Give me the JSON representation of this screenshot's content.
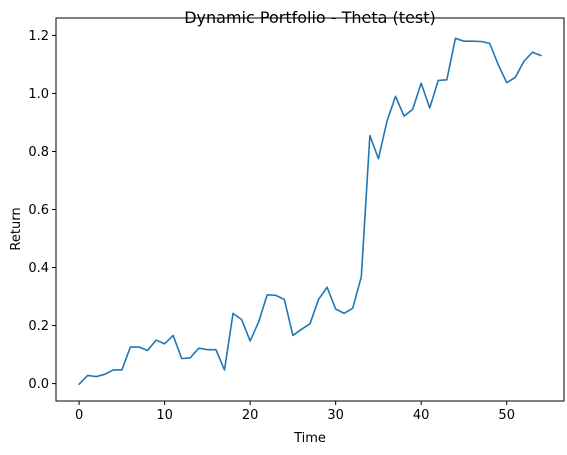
{
  "chart_data": {
    "type": "line",
    "title": "Dynamic Portfolio - Theta (test)",
    "xlabel": "Time",
    "ylabel": "Return",
    "xlim": [
      -2.7,
      56.7
    ],
    "ylim": [
      -0.06,
      1.26
    ],
    "x_ticks": [
      "0",
      "10",
      "20",
      "30",
      "40",
      "50"
    ],
    "y_ticks": [
      "0.0",
      "0.2",
      "0.4",
      "0.6",
      "0.8",
      "1.0",
      "1.2"
    ],
    "grid": false,
    "legend": "none",
    "series": [
      {
        "color": "#1f77b4",
        "x": [
          0,
          1,
          2,
          3,
          4,
          5,
          6,
          7,
          8,
          9,
          10,
          11,
          12,
          13,
          14,
          15,
          16,
          17,
          18,
          19,
          20,
          21,
          22,
          23,
          24,
          25,
          26,
          27,
          28,
          29,
          30,
          31,
          32,
          33,
          34,
          35,
          36,
          37,
          38,
          39,
          40,
          41,
          42,
          43,
          44,
          45,
          46,
          47,
          48,
          49,
          50,
          51,
          52,
          53,
          54
        ],
        "values": [
          -0.002,
          0.028,
          0.024,
          0.032,
          0.047,
          0.047,
          0.126,
          0.126,
          0.114,
          0.15,
          0.137,
          0.166,
          0.086,
          0.089,
          0.122,
          0.117,
          0.117,
          0.047,
          0.242,
          0.221,
          0.147,
          0.213,
          0.306,
          0.304,
          0.29,
          0.166,
          0.187,
          0.206,
          0.29,
          0.332,
          0.257,
          0.242,
          0.26,
          0.368,
          0.855,
          0.775,
          0.904,
          0.99,
          0.922,
          0.945,
          1.035,
          0.95,
          1.045,
          1.047,
          1.19,
          1.18,
          1.18,
          1.179,
          1.173,
          1.1,
          1.037,
          1.055,
          1.11,
          1.142,
          1.131
        ]
      }
    ]
  }
}
